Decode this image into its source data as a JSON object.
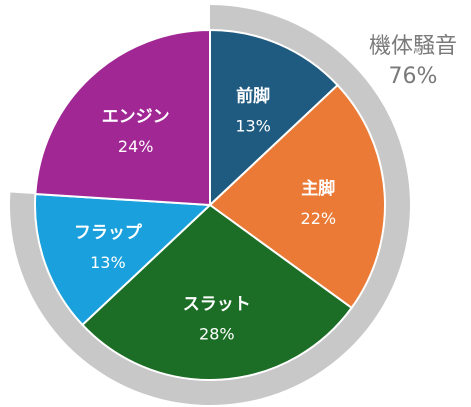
{
  "chart_data": {
    "type": "pie",
    "slices": [
      {
        "label": "前脚",
        "value": 13,
        "value_text": "13%",
        "color": "#1f5a80"
      },
      {
        "label": "主脚",
        "value": 22,
        "value_text": "22%",
        "color": "#ea7a36"
      },
      {
        "label": "スラット",
        "value": 28,
        "value_text": "28%",
        "color": "#1c6e26"
      },
      {
        "label": "フラップ",
        "value": 13,
        "value_text": "13%",
        "color": "#1aa0dc"
      },
      {
        "label": "エンジン",
        "value": 24,
        "value_text": "24%",
        "color": "#a12795"
      }
    ],
    "group_callout": {
      "label": "機体騒音",
      "value": 76,
      "value_text": "76%",
      "ring_color": "#c8c8c8",
      "text_color": "#7a7a7a"
    }
  }
}
